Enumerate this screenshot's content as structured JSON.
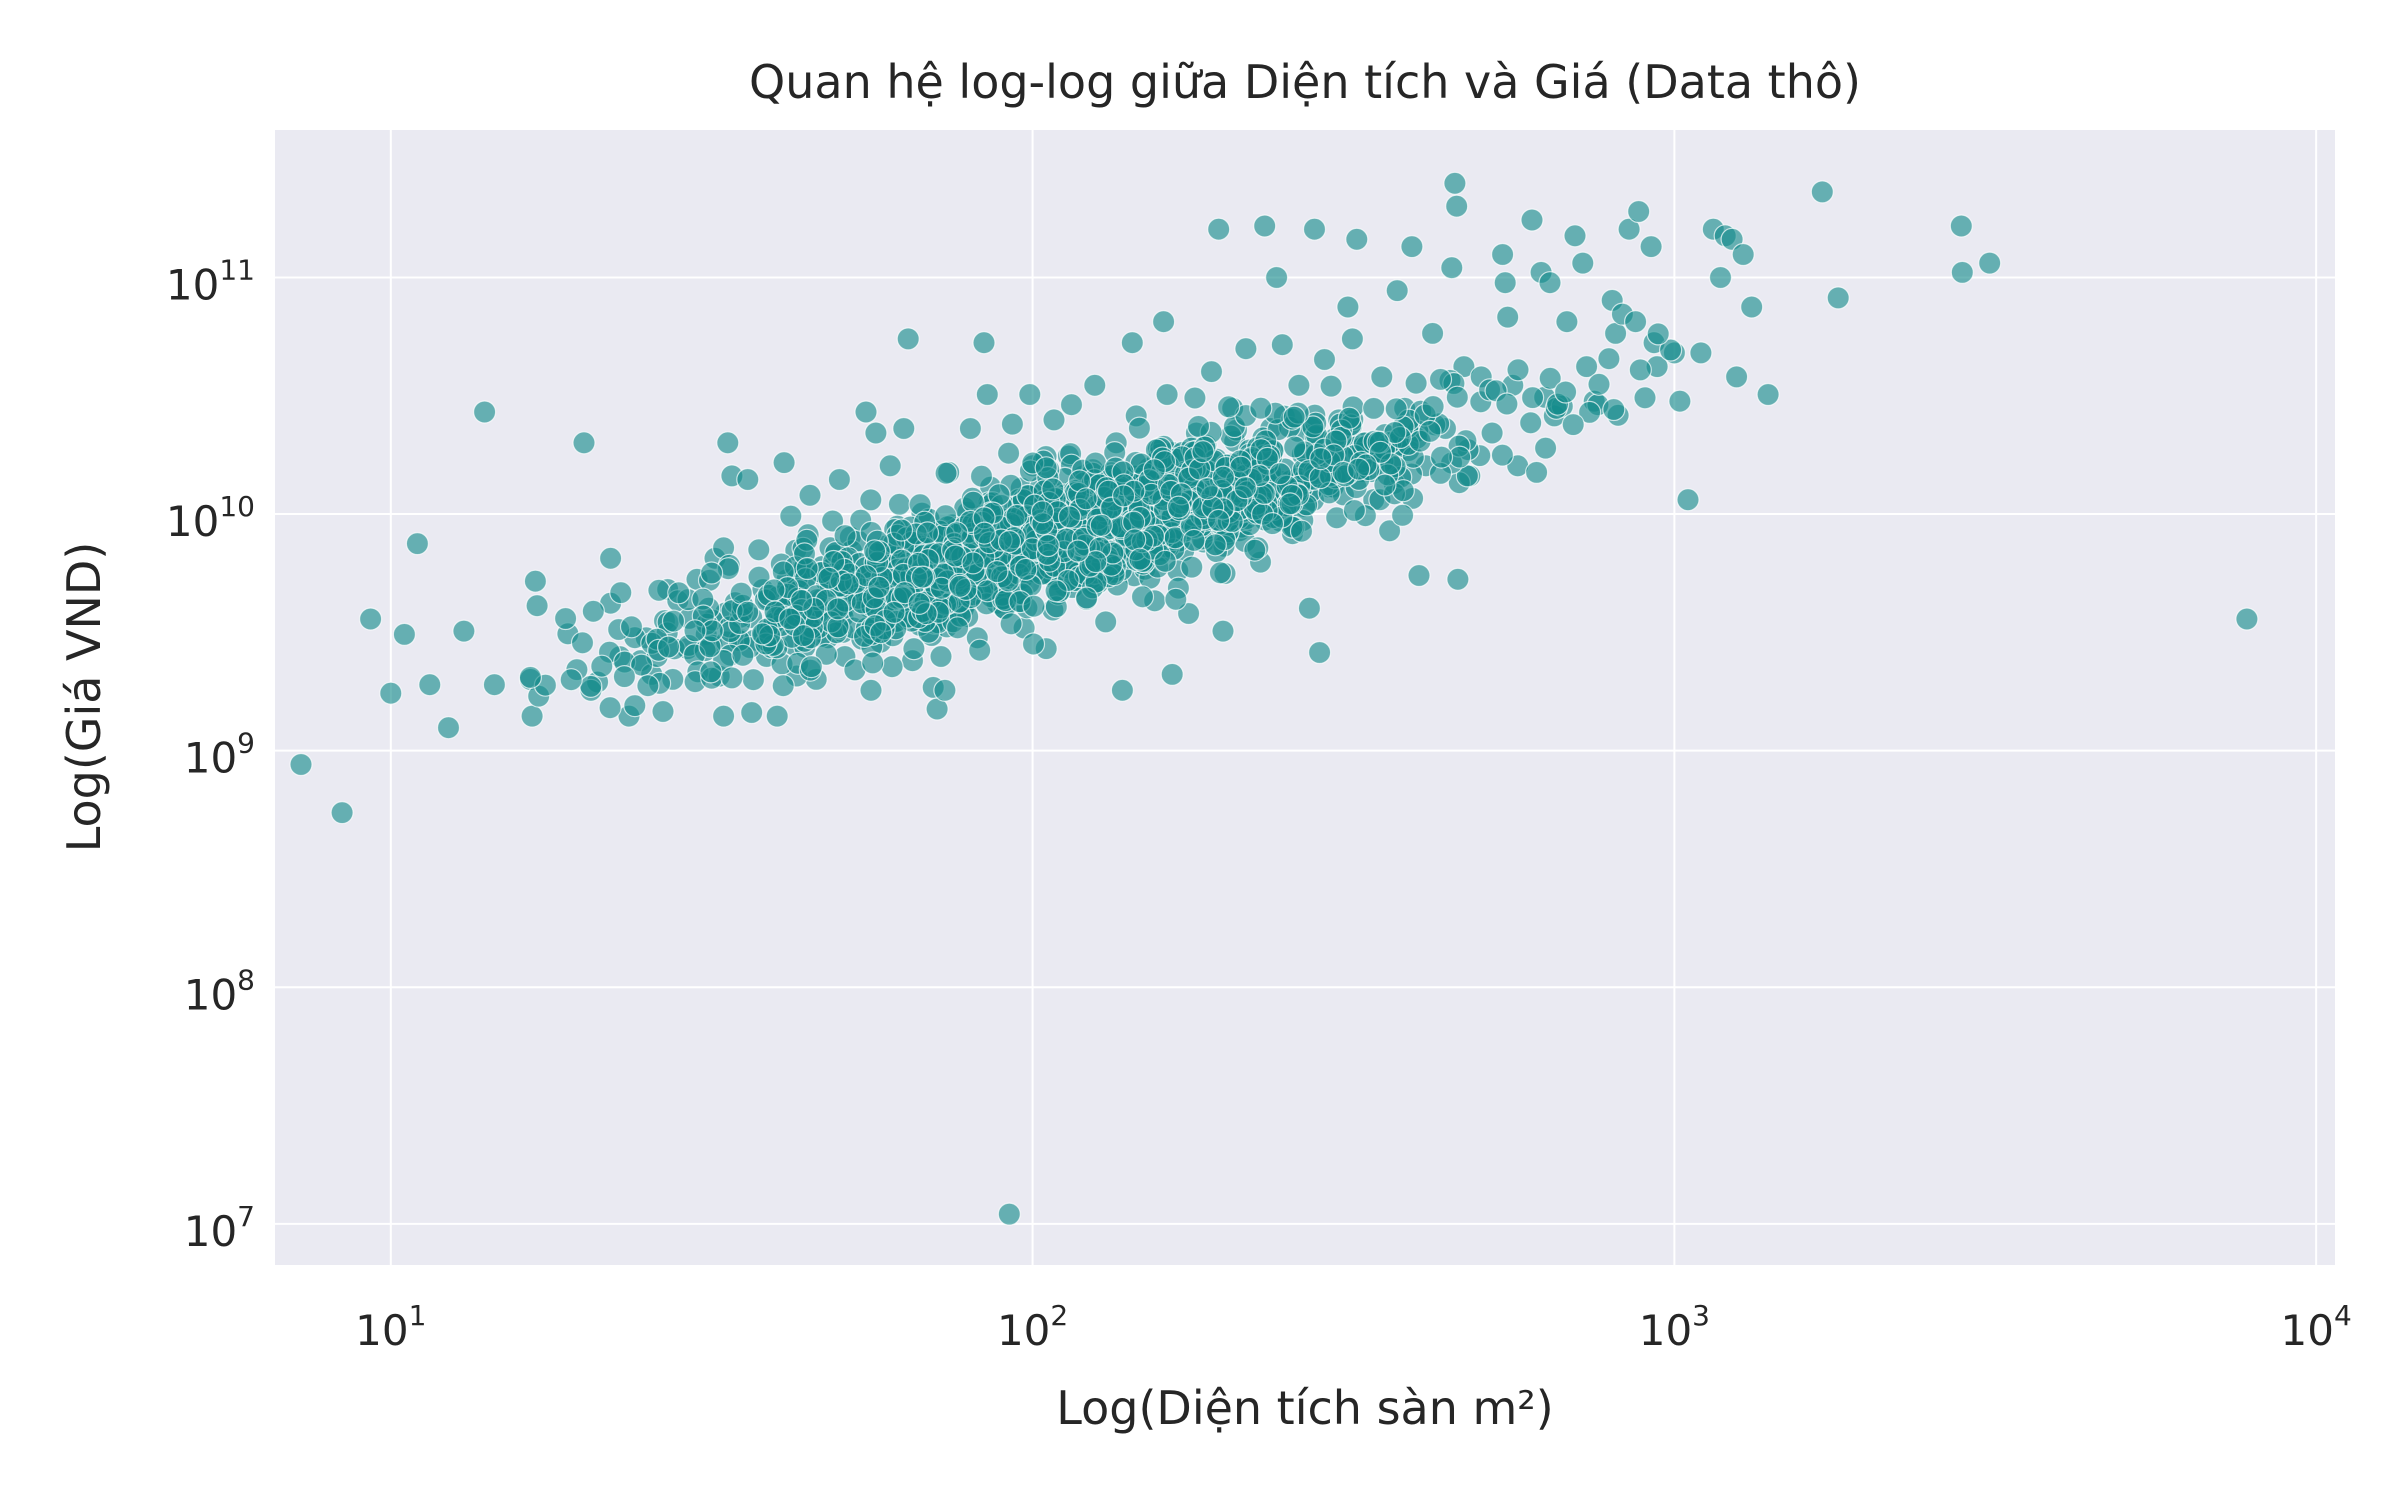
{
  "chart_data": {
    "type": "scatter",
    "title": "Quan hệ log-log giữa Diện tích và Giá (Data thô)",
    "xlabel": "Log(Diện tích sàn m²)",
    "ylabel": "Log(Giá VND)",
    "x_scale": "log",
    "y_scale": "log",
    "xlim": [
      6.6,
      10700
    ],
    "ylim": [
      6700000,
      420000000000
    ],
    "x_ticks": [
      10,
      100,
      1000,
      10000
    ],
    "x_tick_labels": [
      {
        "base": "10",
        "exp": "1"
      },
      {
        "base": "10",
        "exp": "2"
      },
      {
        "base": "10",
        "exp": "3"
      },
      {
        "base": "10",
        "exp": "4"
      }
    ],
    "y_ticks": [
      10000000,
      100000000,
      1000000000,
      10000000000,
      100000000000
    ],
    "y_tick_labels": [
      {
        "base": "10",
        "exp": "7"
      },
      {
        "base": "10",
        "exp": "8"
      },
      {
        "base": "10",
        "exp": "9"
      },
      {
        "base": "10",
        "exp": "10"
      },
      {
        "base": "10",
        "exp": "11"
      }
    ],
    "grid": true,
    "colors": {
      "background": "#eaeaf2",
      "grid": "#ffffff",
      "point_fill": "#138a8a",
      "point_edge": "#ffffff"
    },
    "series": [
      {
        "points": [
          [
            9.3,
            3600000000.0
          ],
          [
            10.0,
            1750000000.0
          ],
          [
            10.5,
            3100000000.0
          ],
          [
            11.0,
            7500000000.0
          ],
          [
            11.5,
            1900000000.0
          ],
          [
            12.3,
            1250000000.0
          ],
          [
            13.0,
            3200000000.0
          ],
          [
            14.0,
            27000000000.0
          ],
          [
            14.5,
            1900000000.0
          ],
          [
            16.5,
            2000000000.0
          ],
          [
            16.6,
            1400000000.0
          ],
          [
            16.8,
            5200000000.0
          ],
          [
            17.0,
            1700000000.0
          ],
          [
            16.9,
            4100000000.0
          ],
          [
            19.5,
            2200000000.0
          ],
          [
            20.0,
            20000000000.0
          ],
          [
            21.0,
            1950000000.0
          ],
          [
            20.5,
            1800000000.0
          ],
          [
            22.0,
            6500000000.0
          ],
          [
            22.0,
            4200000000.0
          ],
          [
            23.5,
            1400000000.0
          ],
          [
            24.0,
            1550000000.0
          ],
          [
            24.5,
            2400000000.0
          ],
          [
            25.0,
            3000000000.0
          ],
          [
            25.5,
            2100000000.0
          ],
          [
            26.0,
            2500000000.0
          ],
          [
            27.0,
            4800000000.0
          ],
          [
            27.5,
            2000000000.0
          ],
          [
            28.0,
            4300000000.0
          ],
          [
            29.0,
            2700000000.0
          ],
          [
            30.0,
            5300000000.0
          ],
          [
            31.0,
            3100000000.0
          ],
          [
            32.0,
            6500000000.0
          ],
          [
            33.0,
            1400000000.0
          ],
          [
            33.5,
            20000000000.0
          ],
          [
            34.0,
            14500000000.0
          ],
          [
            33.0,
            7200000000.0
          ],
          [
            36.0,
            14000000000.0
          ],
          [
            36.5,
            1450000000.0
          ],
          [
            38.0,
            4800000000.0
          ],
          [
            38.5,
            2500000000.0
          ],
          [
            40.0,
            1400000000.0
          ],
          [
            41.0,
            16500000000.0
          ],
          [
            42.0,
            9800000000.0
          ],
          [
            43.0,
            3700000000.0
          ],
          [
            45.0,
            12000000000.0
          ],
          [
            46.0,
            2000000000.0
          ],
          [
            47.0,
            6000000000.0
          ],
          [
            48.0,
            3000000000.0
          ],
          [
            50.0,
            14000000000.0
          ],
          [
            51.0,
            2500000000.0
          ],
          [
            52.0,
            8000000000.0
          ],
          [
            53.0,
            4500000000.0
          ],
          [
            55.0,
            27000000000.0
          ],
          [
            56.0,
            1800000000.0
          ],
          [
            57.0,
            22000000000.0
          ],
          [
            58.0,
            6000000000.0
          ],
          [
            60.0,
            16000000000.0
          ],
          [
            61.0,
            3500000000.0
          ],
          [
            62.0,
            11000000000.0
          ],
          [
            63.0,
            23000000000.0
          ],
          [
            64.0,
            55000000000.0
          ],
          [
            65.0,
            2400000000.0
          ],
          [
            66.0,
            7500000000.0
          ],
          [
            68.0,
            4000000000.0
          ],
          [
            70.0,
            1850000000.0
          ],
          [
            71.0,
            1500000000.0
          ],
          [
            72.0,
            2500000000.0
          ],
          [
            73.0,
            1800000000.0
          ],
          [
            74.0,
            15000000000.0
          ],
          [
            75.0,
            9000000000.0
          ],
          [
            78.0,
            4800000000.0
          ],
          [
            80.0,
            23000000000.0
          ],
          [
            82.0,
            3000000000.0
          ],
          [
            84.0,
            53000000000.0
          ],
          [
            85.0,
            32000000000.0
          ],
          [
            86.0,
            13000000000.0
          ],
          [
            88.0,
            4200000000.0
          ],
          [
            90.0,
            6500000000.0
          ],
          [
            92.0,
            11000000.0
          ],
          [
            93.0,
            24000000000.0
          ],
          [
            95.0,
            10000000000.0
          ],
          [
            97.0,
            3300000000.0
          ],
          [
            99.0,
            32000000000.0
          ],
          [
            100.0,
            16000000000.0
          ],
          [
            102.0,
            7000000000.0
          ],
          [
            105.0,
            2700000000.0
          ],
          [
            108.0,
            25000000000.0
          ],
          [
            110.0,
            12000000000.0
          ],
          [
            112.0,
            5000000000.0
          ],
          [
            115.0,
            29000000000.0
          ],
          [
            118.0,
            8500000000.0
          ],
          [
            120.0,
            14500000000.0
          ],
          [
            125.0,
            35000000000.0
          ],
          [
            128.0,
            6500000000.0
          ],
          [
            130.0,
            3500000000.0
          ],
          [
            135.0,
            20000000000.0
          ],
          [
            138.0,
            1800000000.0
          ],
          [
            140.0,
            11000000000.0
          ],
          [
            143.0,
            53000000000.0
          ],
          [
            145.0,
            26000000000.0
          ],
          [
            150.0,
            8000000000.0
          ],
          [
            155.0,
            4300000000.0
          ],
          [
            160.0,
            65000000000.0
          ],
          [
            162.0,
            32000000000.0
          ],
          [
            165.0,
            2100000000.0
          ],
          [
            168.0,
            13000000000.0
          ],
          [
            172.0,
            7000000000.0
          ],
          [
            175.0,
            3800000000.0
          ],
          [
            180.0,
            22000000000.0
          ],
          [
            185.0,
            10000000000.0
          ],
          [
            190.0,
            40000000000.0
          ],
          [
            195.0,
            160000000000.0
          ],
          [
            198.0,
            3200000000.0
          ],
          [
            200.0,
            14000000000.0
          ],
          [
            205.0,
            28000000000.0
          ],
          [
            210.0,
            8500000000.0
          ],
          [
            215.0,
            50000000000.0
          ],
          [
            220.0,
            17000000000.0
          ],
          [
            230.0,
            165000000000.0
          ],
          [
            235.0,
            23000000000.0
          ],
          [
            240.0,
            100000000000.0
          ],
          [
            245.0,
            52000000000.0
          ],
          [
            250.0,
            11000000000.0
          ],
          [
            260.0,
            35000000000.0
          ],
          [
            265.0,
            18000000000.0
          ],
          [
            270.0,
            4000000000.0
          ],
          [
            275.0,
            160000000000.0
          ],
          [
            280.0,
            2600000000.0
          ],
          [
            285.0,
            45000000000.0
          ],
          [
            290.0,
            13000000000.0
          ],
          [
            300.0,
            25000000000.0
          ],
          [
            310.0,
            75000000000.0
          ],
          [
            315.0,
            55000000000.0
          ],
          [
            320.0,
            145000000000.0
          ],
          [
            330.0,
            20000000000.0
          ],
          [
            340.0,
            11500000000.0
          ],
          [
            350.0,
            38000000000.0
          ],
          [
            360.0,
            8500000000.0
          ],
          [
            370.0,
            88000000000.0
          ],
          [
            380.0,
            28000000000.0
          ],
          [
            390.0,
            135000000000.0
          ],
          [
            400.0,
            5500000000.0
          ],
          [
            410.0,
            16000000000.0
          ],
          [
            420.0,
            58000000000.0
          ],
          [
            440.0,
            23000000000.0
          ],
          [
            450.0,
            110000000000.0
          ],
          [
            455.0,
            250000000000.0
          ],
          [
            458.0,
            200000000000.0
          ],
          [
            460.0,
            5300000000.0
          ],
          [
            470.0,
            42000000000.0
          ],
          [
            480.0,
            14500000000.0
          ],
          [
            500.0,
            38000000000.0
          ],
          [
            520.0,
            22000000000.0
          ],
          [
            540.0,
            125000000000.0
          ],
          [
            545.0,
            95000000000.0
          ],
          [
            550.0,
            68000000000.0
          ],
          [
            560.0,
            35000000000.0
          ],
          [
            570.0,
            16000000000.0
          ],
          [
            600.0,
            175000000000.0
          ],
          [
            610.0,
            15000000000.0
          ],
          [
            620.0,
            105000000000.0
          ],
          [
            630.0,
            19000000000.0
          ],
          [
            640.0,
            95000000000.0
          ],
          [
            650.0,
            26000000000.0
          ],
          [
            680.0,
            65000000000.0
          ],
          [
            700.0,
            150000000000.0
          ],
          [
            720.0,
            115000000000.0
          ],
          [
            730.0,
            42000000000.0
          ],
          [
            750.0,
            30000000000.0
          ],
          [
            760.0,
            29000000000.0
          ],
          [
            800.0,
            80000000000.0
          ],
          [
            810.0,
            58000000000.0
          ],
          [
            830.0,
            70000000000.0
          ],
          [
            850.0,
            160000000000.0
          ],
          [
            870.0,
            65000000000.0
          ],
          [
            880.0,
            190000000000.0
          ],
          [
            900.0,
            31000000000.0
          ],
          [
            920.0,
            135000000000.0
          ],
          [
            930.0,
            53000000000.0
          ],
          [
            940.0,
            42000000000.0
          ],
          [
            1000.0,
            48000000000.0
          ],
          [
            1020.0,
            30000000000.0
          ],
          [
            1050.0,
            11500000000.0
          ],
          [
            1100.0,
            48000000000.0
          ],
          [
            1150.0,
            160000000000.0
          ],
          [
            1180.0,
            100000000000.0
          ],
          [
            1200.0,
            150000000000.0
          ],
          [
            1230.0,
            145000000000.0
          ],
          [
            1250.0,
            38000000000.0
          ],
          [
            1280.0,
            125000000000.0
          ],
          [
            1320.0,
            75000000000.0
          ],
          [
            1400.0,
            32000000000.0
          ],
          [
            1700.0,
            230000000000.0
          ],
          [
            1800.0,
            82000000000.0
          ],
          [
            2800.0,
            165000000000.0
          ],
          [
            2810.0,
            105000000000.0
          ],
          [
            3100.0,
            115000000000.0
          ],
          [
            7800.0,
            3600000000.0
          ]
        ]
      }
    ]
  }
}
